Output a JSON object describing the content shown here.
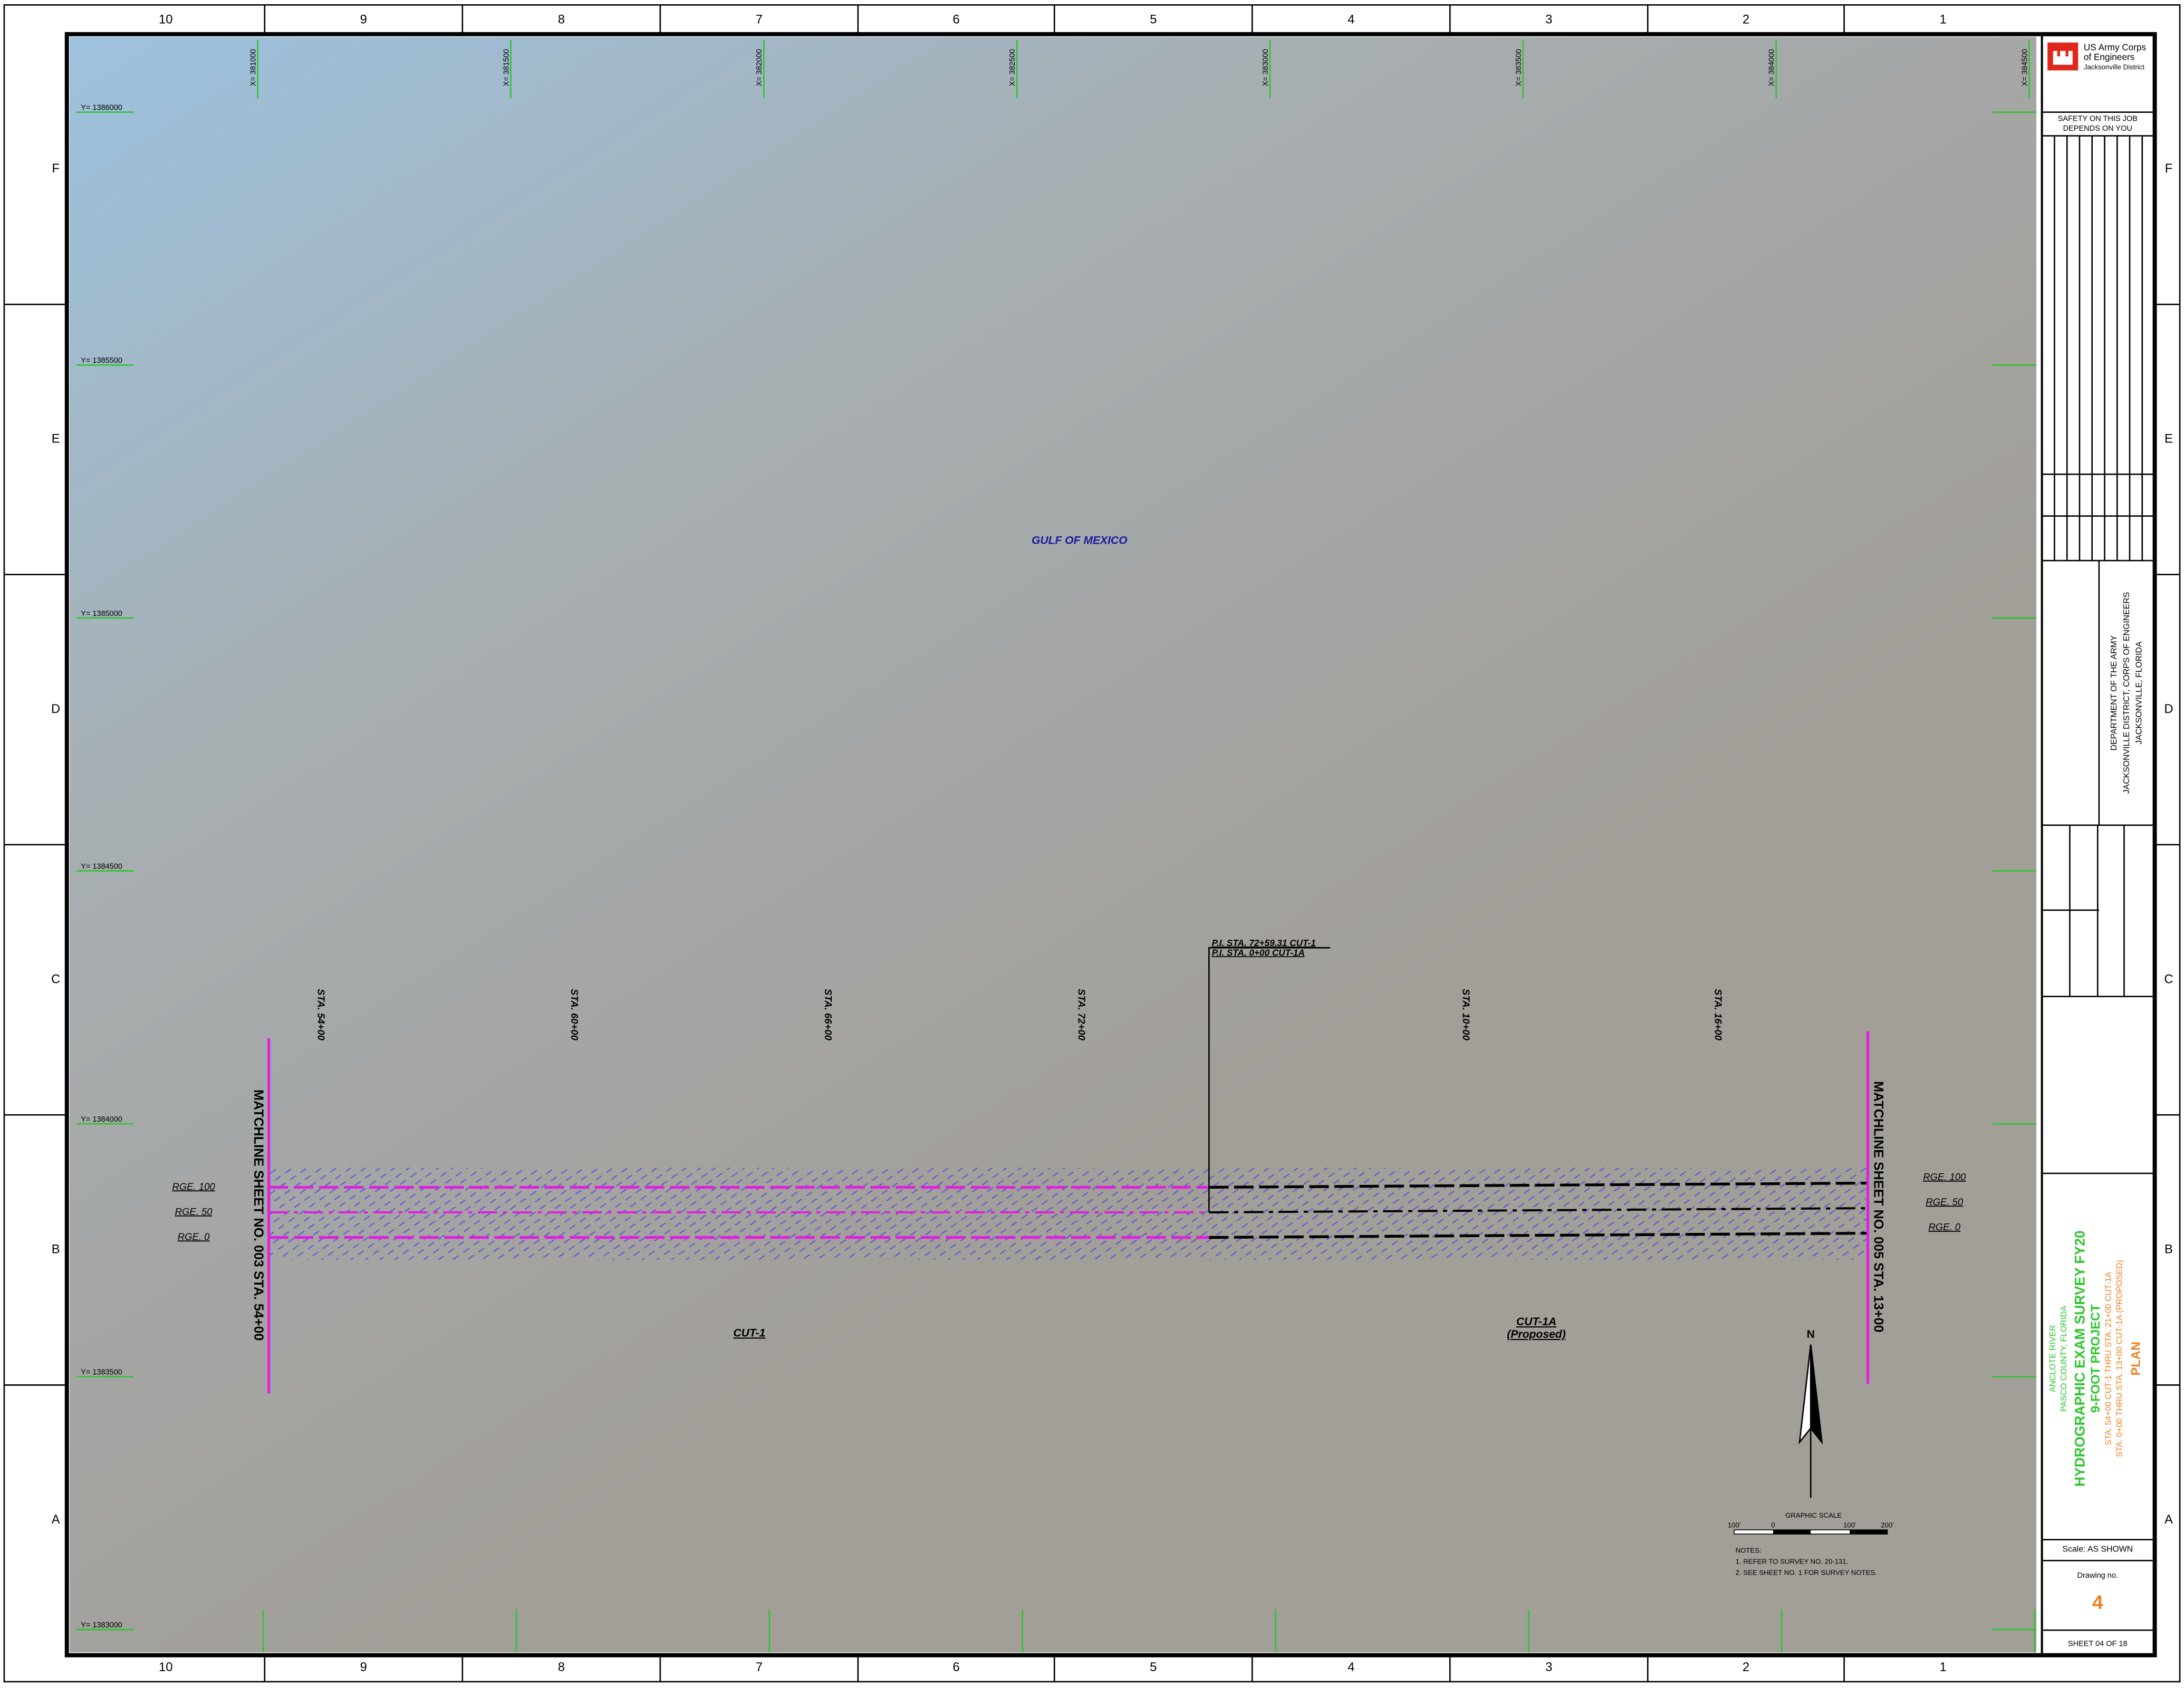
{
  "border": {
    "columns": [
      "10",
      "9",
      "8",
      "7",
      "6",
      "5",
      "4",
      "3",
      "2",
      "1"
    ],
    "rows": [
      "F",
      "E",
      "D",
      "C",
      "B",
      "A"
    ]
  },
  "grid": {
    "y_labels": [
      "Y= 1386000",
      "Y= 1385500",
      "Y= 1385000",
      "Y= 1384500",
      "Y= 1384000",
      "Y= 1383500",
      "Y= 1383000"
    ],
    "x_labels": [
      "X= 381000",
      "X= 381500",
      "X= 382000",
      "X= 382500",
      "X= 383000",
      "X= 383500",
      "X= 384000",
      "X= 384500"
    ]
  },
  "map": {
    "water_label": "GULF OF MEXICO",
    "stations": [
      "STA. 54+00",
      "STA. 60+00",
      "STA. 66+00",
      "STA. 72+00",
      "STA. 10+00",
      "STA. 16+00"
    ],
    "pi_labels": [
      "P.I. STA. 72+59.31 CUT-1",
      "P.I. STA. 0+00 CUT-1A"
    ],
    "matchlines": [
      "MATCHLINE SHEET NO. 003 STA. 54+00",
      "MATCHLINE SHEET NO. 005 STA. 13+00"
    ],
    "ranges": [
      "RGE. 100",
      "RGE. 50",
      "RGE. 0"
    ],
    "cuts": [
      "CUT-1",
      "CUT-1A",
      "(Proposed)"
    ],
    "north": "N",
    "scale_title": "GRAPHIC SCALE",
    "scale_ticks": [
      "100'",
      "0",
      "100'",
      "200'"
    ],
    "notes": [
      "NOTES:",
      "1. REFER TO SURVEY NO. 20-131.",
      "2. SEE SHEET NO. 1 FOR SURVEY NOTES."
    ]
  },
  "title_block": {
    "org": [
      "US Army Corps",
      "of Engineers",
      "Jacksonville District"
    ],
    "safety": [
      "SAFETY ON THIS JOB",
      "DEPENDS ON YOU"
    ],
    "department": [
      "DEPARTMENT OF THE ARMY",
      "JACKSONVILLE DISTRICT, CORPS OF ENGINEERS",
      "JACKSONVILLE, FLORIDA"
    ],
    "title": [
      "ANCLOTE RIVER",
      "PASCO COUNTY, FLORIDA",
      "HYDROGRAPHIC EXAM SURVEY FY20",
      "9-FOOT PROJECT",
      "STA. 54+00 CUT-1 THRU STA. 21+00 CUT-1A",
      "STA. 0+00 THRU STA. 13+00 CUT-1A (PROPOSED)",
      "PLAN"
    ],
    "scale": "Scale:  AS SHOWN",
    "drawing_label": "Drawing no.",
    "drawing_no": "4",
    "sheet": "SHEET  04  OF  18"
  }
}
